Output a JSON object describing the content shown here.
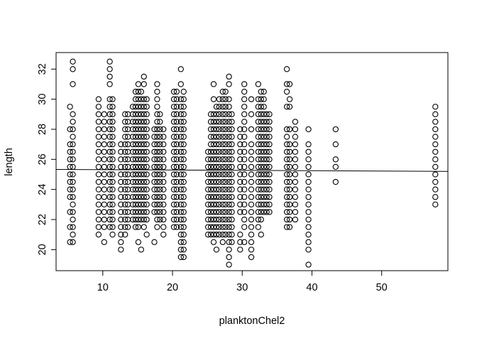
{
  "chart_data": {
    "type": "scatter",
    "xlabel": "planktonChel2",
    "ylabel": "length",
    "xlim": [
      3.3,
      59.5
    ],
    "ylim": [
      18.6,
      33.1
    ],
    "xticks": [
      10,
      20,
      30,
      40,
      50
    ],
    "yticks": [
      20,
      22,
      24,
      26,
      28,
      30,
      32
    ],
    "grid": false,
    "marker": "open-circle",
    "point_color": "#000000",
    "regression_line": {
      "x": [
        3.3,
        59.5
      ],
      "y": [
        25.33,
        25.2
      ]
    },
    "series": [
      {
        "columns": [
          {
            "x": 5.3,
            "y": [
              20.5,
              21.5,
              22.5,
              23.5,
              24,
              24.5,
              25,
              25.5,
              26,
              26.5,
              27,
              28,
              29.5
            ]
          },
          {
            "x": 5.7,
            "y": [
              20.5,
              21,
              21.5,
              22,
              22.5,
              23,
              23.5,
              24,
              24.5,
              25,
              25.5,
              26,
              26.5,
              27,
              27.5,
              28,
              28.5,
              29,
              31,
              32,
              32.5
            ]
          },
          {
            "x": 9.4,
            "y": [
              21,
              21.5,
              22,
              22.5,
              23,
              23.5,
              24,
              24.5,
              25,
              25.5,
              26,
              26.5,
              27,
              27.5,
              28,
              28.5,
              29,
              29.5,
              30
            ]
          },
          {
            "x": 10.2,
            "y": [
              20.5,
              21.5,
              22,
              22.5,
              23,
              23.5,
              24,
              24.5,
              25,
              25.5,
              26,
              26.5,
              27,
              27.5,
              28,
              28.5,
              29
            ]
          },
          {
            "x": 11,
            "y": [
              21.5,
              22,
              22.5,
              23,
              23.5,
              24,
              24.5,
              25,
              25.5,
              26,
              26.5,
              27,
              27.5,
              28,
              28.5,
              29,
              29.5,
              30,
              31,
              31.5,
              32,
              32.5
            ]
          },
          {
            "x": 11.4,
            "y": [
              21,
              21.5,
              22,
              22.5,
              23,
              23.5,
              24,
              24.5,
              25,
              25.5,
              26,
              26.5,
              27,
              27.5,
              28,
              28.5,
              29,
              29.5,
              30
            ]
          },
          {
            "x": 12.6,
            "y": [
              20,
              20.5,
              21,
              21.5,
              22,
              22.5,
              23,
              23.5,
              24,
              24.5,
              25,
              25.5,
              26,
              26.5,
              27
            ]
          },
          {
            "x": 13.2,
            "y": [
              21,
              21.5,
              22,
              22.5,
              23,
              23.5,
              24,
              24.5,
              25,
              25.5,
              26,
              26.5,
              27,
              27.5,
              28,
              28.5,
              29
            ]
          },
          {
            "x": 13.6,
            "y": [
              21.5,
              22,
              22.5,
              23,
              23.5,
              24,
              24.5,
              25,
              25.5,
              26,
              26.5,
              27,
              27.5,
              28,
              28.5,
              29
            ]
          },
          {
            "x": 14.3,
            "y": [
              22,
              22.5,
              23,
              23.5,
              24,
              24.5,
              25,
              25.5,
              26,
              26.5,
              27,
              27.5,
              28,
              28.5,
              29,
              29.5
            ]
          },
          {
            "x": 14.7,
            "y": [
              21.5,
              22,
              22.5,
              23,
              23.5,
              24,
              24.5,
              25,
              25.5,
              26,
              26.5,
              27,
              27.5,
              28,
              28.5,
              29,
              29.5,
              30,
              30.5
            ]
          },
          {
            "x": 15.1,
            "y": [
              20.5,
              21.5,
              22,
              22.5,
              23,
              23.5,
              24,
              24.5,
              25,
              25.5,
              26,
              26.5,
              27,
              27.5,
              28,
              28.5,
              29,
              29.5,
              30,
              30.5,
              31
            ]
          },
          {
            "x": 15.5,
            "y": [
              20,
              22,
              22.5,
              23,
              23.5,
              24,
              24.5,
              25,
              25.5,
              26,
              26.5,
              27,
              27.5,
              28,
              28.5,
              29,
              29.5,
              30,
              30.5
            ]
          },
          {
            "x": 15.9,
            "y": [
              21.5,
              22,
              22.5,
              23,
              23.5,
              24,
              24.5,
              25,
              25.5,
              26,
              26.5,
              27,
              27.5,
              28,
              28.5,
              29,
              29.5,
              30,
              31,
              31.5
            ]
          },
          {
            "x": 16.3,
            "y": [
              21,
              22,
              22.5,
              23,
              23.5,
              24,
              24.5,
              25,
              25.5,
              26,
              26.5,
              27,
              27.5,
              28,
              28.5,
              29,
              29.5,
              30
            ]
          },
          {
            "x": 17.4,
            "y": [
              20.5,
              22.5,
              23,
              23.5,
              24,
              24.5,
              25,
              25.5,
              26,
              26.5,
              27,
              27.5,
              28
            ]
          },
          {
            "x": 17.8,
            "y": [
              21.5,
              22,
              22.5,
              23,
              23.5,
              24,
              24.5,
              25,
              25.5,
              26,
              26.5,
              27,
              27.5,
              28,
              28.5,
              29,
              29.5,
              30,
              30.5,
              31
            ]
          },
          {
            "x": 18.2,
            "y": [
              22,
              22.5,
              23,
              23.5,
              24,
              24.5,
              25,
              25.5,
              26,
              26.5,
              27,
              27.5,
              28,
              28.5,
              29
            ]
          },
          {
            "x": 18.7,
            "y": [
              21,
              21.5,
              22,
              22.5,
              23,
              23.5,
              24,
              24.5,
              25,
              25.5,
              26,
              26.5,
              27,
              27.5,
              28
            ]
          },
          {
            "x": 20.2,
            "y": [
              21.5,
              22,
              22.5,
              23,
              23.5,
              24,
              24.5,
              25,
              25.5,
              26,
              26.5,
              27,
              27.5,
              28,
              28.5,
              29,
              29.5,
              30,
              30.5
            ]
          },
          {
            "x": 20.6,
            "y": [
              21.5,
              22,
              22.5,
              23,
              23.5,
              24,
              24.5,
              25,
              25.5,
              26,
              26.5,
              27,
              27.5,
              28,
              28.5,
              29,
              29.5,
              30,
              30.5
            ]
          },
          {
            "x": 21.2,
            "y": [
              19.5,
              20,
              20.5,
              21,
              21.5,
              22,
              22.5,
              23,
              23.5,
              24,
              24.5,
              25,
              25.5,
              26,
              26.5,
              27,
              27.5,
              28,
              28.5,
              29,
              29.5,
              30,
              31,
              32
            ]
          },
          {
            "x": 21.6,
            "y": [
              19.5,
              20,
              20.5,
              21,
              21.5,
              22,
              22.5,
              23,
              23.5,
              24,
              24.5,
              25,
              25.5,
              26,
              26.5,
              27,
              27.5,
              28,
              28.5,
              29,
              29.5,
              30,
              30.5
            ]
          },
          {
            "x": 25.1,
            "y": [
              21,
              21.5,
              22,
              22.5,
              23,
              23.5,
              24,
              24.5,
              25,
              25.5,
              26,
              26.5
            ]
          },
          {
            "x": 25.5,
            "y": [
              21,
              21.5,
              22,
              22.5,
              23,
              23.5,
              24,
              24.5,
              25,
              25.5,
              26,
              26.5,
              27,
              27.5,
              28,
              28.5,
              29
            ]
          },
          {
            "x": 25.9,
            "y": [
              20.5,
              21,
              21.5,
              22,
              22.5,
              23,
              23.5,
              24,
              24.5,
              25,
              25.5,
              26,
              26.5,
              27,
              27.5,
              28,
              28.5,
              29,
              30,
              31
            ]
          },
          {
            "x": 26.3,
            "y": [
              20,
              21,
              21.5,
              22,
              22.5,
              23,
              23.5,
              24,
              24.5,
              25,
              25.5,
              26,
              26.5,
              27,
              27.5,
              28,
              28.5,
              29,
              29.5
            ]
          },
          {
            "x": 26.7,
            "y": [
              21,
              21.5,
              22,
              22.5,
              23,
              23.5,
              24,
              24.5,
              25,
              25.5,
              26,
              26.5,
              27,
              27.5,
              28,
              28.5,
              29,
              29.5,
              30
            ]
          },
          {
            "x": 27.2,
            "y": [
              20.5,
              21,
              21.5,
              22,
              22.5,
              23,
              23.5,
              24,
              24.5,
              25,
              25.5,
              26,
              26.5,
              27,
              27.5,
              28,
              28.5,
              29,
              29.5,
              30,
              30.5
            ]
          },
          {
            "x": 27.6,
            "y": [
              21,
              21.5,
              22,
              22.5,
              23,
              23.5,
              24,
              24.5,
              25,
              25.5,
              26,
              26.5,
              27,
              27.5,
              28,
              28.5,
              29,
              29.5,
              30,
              30.5
            ]
          },
          {
            "x": 28.1,
            "y": [
              19,
              19.5,
              20,
              20.5,
              21,
              21.5,
              22,
              22.5,
              23,
              23.5,
              24,
              24.5,
              25,
              25.5,
              26,
              26.5,
              27,
              27.5,
              28,
              28.5,
              29,
              29.5,
              30,
              31,
              31.5
            ]
          },
          {
            "x": 28.5,
            "y": [
              20.5,
              21,
              21.5,
              22,
              22.5,
              23,
              23.5,
              24,
              24.5,
              25,
              25.5,
              26,
              26.5,
              27,
              27.5,
              28,
              28.5,
              29
            ]
          },
          {
            "x": 29.7,
            "y": [
              20,
              20.5,
              21,
              22.5,
              23,
              23.5,
              24,
              24.5,
              25,
              25.5,
              26,
              26.5,
              27,
              27.5,
              28
            ]
          },
          {
            "x": 30.3,
            "y": [
              20.5,
              21.5,
              22,
              22.5,
              23,
              23.5,
              24,
              24.5,
              25,
              25.5,
              26,
              26.5,
              27,
              27.5,
              28,
              28.5,
              29,
              29.5,
              30,
              30.5,
              31
            ]
          },
          {
            "x": 31.3,
            "y": [
              19.5,
              20,
              20.5,
              21,
              21.5,
              22,
              22.5,
              23,
              23.5,
              24,
              24.5,
              25,
              25.5,
              26,
              26.5,
              27,
              28,
              29,
              30
            ]
          },
          {
            "x": 32.3,
            "y": [
              21.5,
              22,
              22.5,
              23,
              23.5,
              24,
              24.5,
              25,
              25.5,
              26,
              26.5,
              27,
              27.5,
              28,
              28.5,
              29,
              29.5,
              30,
              31
            ]
          },
          {
            "x": 32.7,
            "y": [
              21,
              22,
              22.5,
              23,
              23.5,
              24,
              24.5,
              25,
              25.5,
              26,
              26.5,
              27,
              27.5,
              28,
              28.5,
              29,
              29.5,
              30,
              30.5
            ]
          },
          {
            "x": 33.1,
            "y": [
              22.5,
              23,
              23.5,
              24,
              24.5,
              25,
              25.5,
              26,
              26.5,
              27,
              27.5,
              28,
              28.5,
              29,
              29.5,
              30,
              30.5
            ]
          },
          {
            "x": 33.5,
            "y": [
              22.5,
              23,
              23.5,
              24,
              24.5,
              25,
              25.5,
              26,
              26.5,
              27,
              27.5,
              28,
              28.5,
              29
            ]
          },
          {
            "x": 33.9,
            "y": [
              22.5,
              23,
              23.5,
              24,
              24.5,
              25,
              25.5,
              26,
              26.5,
              27,
              27.5,
              28,
              28.5,
              29
            ]
          },
          {
            "x": 36.4,
            "y": [
              21.5,
              22,
              22.5,
              23,
              23.5,
              24,
              24.5,
              25,
              25.5,
              26,
              26.5,
              27,
              27.5,
              28,
              29.5,
              30.5,
              31,
              32
            ]
          },
          {
            "x": 36.8,
            "y": [
              21.5,
              22,
              22.5,
              23,
              23.5,
              24,
              24.5,
              25,
              25.5,
              26,
              26.5,
              27,
              28,
              29.5,
              30,
              31
            ]
          },
          {
            "x": 37.6,
            "y": [
              22,
              22.5,
              23,
              23.5,
              24,
              24.5,
              25,
              25.5,
              26,
              26.5,
              27,
              27.5,
              28,
              28.5
            ]
          },
          {
            "x": 39.5,
            "y": [
              19,
              20,
              20.5,
              21,
              21.5,
              22,
              22.5,
              23,
              23.5,
              24,
              24.5,
              25,
              25.5,
              26,
              26.5,
              27,
              28
            ]
          },
          {
            "x": 43.4,
            "y": [
              24.5,
              25.5,
              26,
              27,
              28
            ]
          },
          {
            "x": 57.7,
            "y": [
              23,
              23.5,
              24,
              24.5,
              25,
              25.5,
              26,
              26.5,
              27,
              27.5,
              28,
              28.5,
              29,
              29.5
            ]
          }
        ]
      }
    ]
  }
}
